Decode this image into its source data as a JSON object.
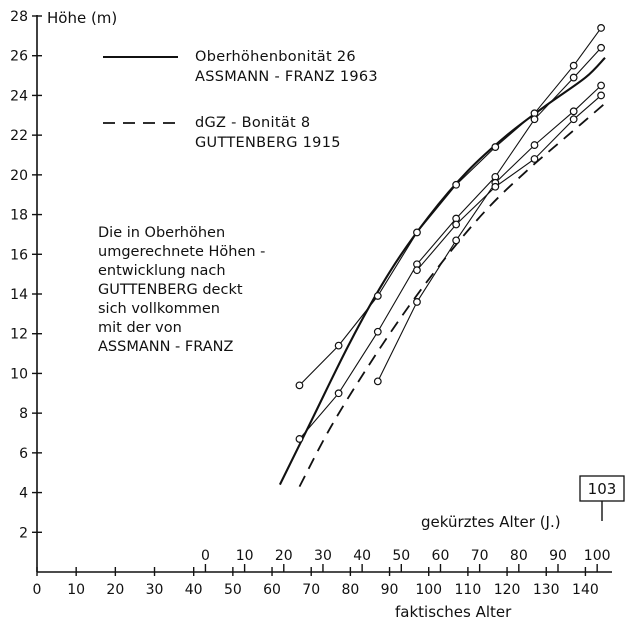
{
  "chart_data": {
    "type": "line",
    "ylabel": "Höhe (m)",
    "ylim": [
      0,
      28
    ],
    "y_ticks": [
      2,
      4,
      6,
      8,
      10,
      12,
      14,
      16,
      18,
      20,
      22,
      24,
      26,
      28
    ],
    "xlabel_primary": "faktisches Alter",
    "xlim_primary": [
      0,
      145
    ],
    "x_ticks_primary": [
      0,
      10,
      20,
      30,
      40,
      50,
      60,
      70,
      80,
      90,
      100,
      110,
      120,
      130,
      140
    ],
    "xlabel_secondary": "gekürztes Alter (J.)",
    "x_ticks_secondary": [
      0,
      10,
      20,
      30,
      40,
      50,
      60,
      70,
      80,
      90,
      100
    ],
    "secondary_axis_offset": 43,
    "series": [
      {
        "name": "Oberhöhenbonität 26 ASSMANN - FRANZ 1963",
        "style": "solid",
        "x": [
          62,
          70,
          80,
          90,
          100,
          110,
          120,
          130,
          140,
          145
        ],
        "y": [
          4.4,
          7.6,
          11.6,
          15.1,
          17.9,
          20.2,
          22.0,
          23.5,
          24.9,
          25.9
        ]
      },
      {
        "name": "dGZ - Bonität 8 GUTTENBERG 1915",
        "style": "dashed",
        "x": [
          67,
          75,
          85,
          95,
          105,
          115,
          125,
          135,
          145
        ],
        "y": [
          4.3,
          7.3,
          10.5,
          13.4,
          16.0,
          18.3,
          20.2,
          21.9,
          23.6
        ]
      }
    ],
    "observations": [
      {
        "x": [
          67,
          77,
          87,
          97,
          107,
          117,
          127,
          137,
          144
        ],
        "y": [
          9.4,
          11.4,
          13.9,
          17.1,
          19.5,
          21.4,
          23.1,
          25.5,
          27.4
        ]
      },
      {
        "x": [
          67,
          77,
          87,
          97,
          107,
          117,
          127,
          137,
          144
        ],
        "y": [
          6.7,
          9.0,
          12.1,
          15.5,
          17.8,
          19.9,
          22.8,
          24.9,
          26.4
        ]
      },
      {
        "x": [
          87,
          97,
          107,
          117,
          127,
          137,
          144
        ],
        "y": [
          9.6,
          13.6,
          16.7,
          19.6,
          21.5,
          23.2,
          24.5
        ]
      },
      {
        "x": [
          97,
          107,
          117,
          127,
          137,
          144
        ],
        "y": [
          15.2,
          17.5,
          19.4,
          20.8,
          22.8,
          24.0
        ]
      }
    ],
    "legend": [
      {
        "line1": "Oberhöhenbonität 26",
        "line2": "ASSMANN - FRANZ 1963"
      },
      {
        "line1": "dGZ - Bonität 8",
        "line2": "GUTTENBERG 1915"
      }
    ],
    "annotation": [
      "Die in Oberhöhen",
      "umgerechnete Höhen -",
      "entwicklung nach",
      "GUTTENBERG deckt",
      "sich vollkommen",
      "mit der von",
      "ASSMANN - FRANZ"
    ],
    "box_label": "103",
    "grid": false
  }
}
